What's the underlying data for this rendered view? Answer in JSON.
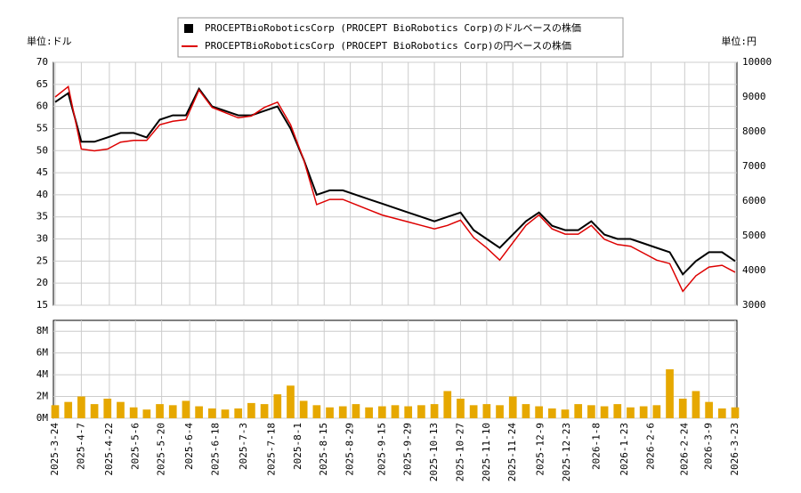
{
  "chart_data": [
    {
      "type": "line",
      "ylabel": "単位:ドル",
      "y2label": "単位:円",
      "legend": "upper center",
      "grid": true,
      "x": [
        "2025-3-24",
        "2025-3-31",
        "2025-4-7",
        "2025-4-14",
        "2025-4-21",
        "2025-4-28",
        "2025-5-5",
        "2025-5-12",
        "2025-5-19",
        "2025-5-26",
        "2025-6-2",
        "2025-6-9",
        "2025-6-16",
        "2025-6-23",
        "2025-6-30",
        "2025-7-7",
        "2025-7-14",
        "2025-7-21",
        "2025-7-28",
        "2025-8-4",
        "2025-8-11",
        "2025-8-18",
        "2025-8-25",
        "2025-9-1",
        "2025-9-8",
        "2025-9-15",
        "2025-9-22",
        "2025-9-29",
        "2025-10-6",
        "2025-10-13",
        "2025-10-20",
        "2025-10-27",
        "2025-11-3",
        "2025-11-10",
        "2025-11-17",
        "2025-11-24",
        "2025-12-1",
        "2025-12-8",
        "2025-12-15",
        "2025-12-22",
        "2025-12-29",
        "2026-1-5",
        "2026-1-12",
        "2026-1-19",
        "2026-1-26",
        "2026-2-2",
        "2026-2-9",
        "2026-2-16",
        "2026-2-23",
        "2026-3-2",
        "2026-3-9",
        "2026-3-16",
        "2026-3-23"
      ],
      "xlim": [
        "2025-3-24",
        "2026-3-23"
      ],
      "ylim": [
        15,
        70
      ],
      "yticks": [
        15,
        20,
        25,
        30,
        35,
        40,
        45,
        50,
        55,
        60,
        65,
        70
      ],
      "y2lim": [
        3000,
        10000
      ],
      "y2ticks": [
        3000,
        4000,
        5000,
        6000,
        7000,
        8000,
        9000,
        10000
      ],
      "series": [
        {
          "name": "PROCEPTBioRoboticsCorp (PROCEPT BioRobotics Corp)のドルベースの株価",
          "color": "#000000",
          "marker": "square",
          "axis": "y",
          "values": [
            61,
            63,
            52,
            52,
            53,
            54,
            54,
            53,
            57,
            58,
            58,
            64,
            60,
            59,
            58,
            58,
            59,
            60,
            55,
            48,
            40,
            41,
            41,
            40,
            39,
            38,
            37,
            36,
            35,
            34,
            35,
            36,
            32,
            30,
            28,
            31,
            34,
            36,
            33,
            32,
            32,
            34,
            31,
            30,
            30,
            29,
            28,
            27,
            22,
            25,
            27,
            27,
            25
          ]
        },
        {
          "name": "PROCEPTBioRoboticsCorp (PROCEPT BioRobotics Corp)の円ベースの株価",
          "color": "#dd0000",
          "marker": "line",
          "axis": "y2",
          "values": [
            9000,
            9300,
            7500,
            7450,
            7500,
            7700,
            7750,
            7750,
            8200,
            8300,
            8350,
            9200,
            8700,
            8550,
            8400,
            8450,
            8700,
            8850,
            8200,
            7200,
            5900,
            6050,
            6050,
            5900,
            5750,
            5600,
            5500,
            5400,
            5300,
            5200,
            5300,
            5450,
            4950,
            4650,
            4300,
            4800,
            5300,
            5600,
            5200,
            5050,
            5050,
            5300,
            4900,
            4750,
            4700,
            4500,
            4300,
            4200,
            3400,
            3850,
            4100,
            4150,
            3950
          ]
        }
      ]
    },
    {
      "type": "bar",
      "color": "#e6a800",
      "grid": true,
      "x": [
        "2025-3-24",
        "2025-3-31",
        "2025-4-7",
        "2025-4-14",
        "2025-4-21",
        "2025-4-28",
        "2025-5-5",
        "2025-5-12",
        "2025-5-19",
        "2025-5-26",
        "2025-6-2",
        "2025-6-9",
        "2025-6-16",
        "2025-6-23",
        "2025-6-30",
        "2025-7-7",
        "2025-7-14",
        "2025-7-21",
        "2025-7-28",
        "2025-8-4",
        "2025-8-11",
        "2025-8-18",
        "2025-8-25",
        "2025-9-1",
        "2025-9-8",
        "2025-9-15",
        "2025-9-22",
        "2025-9-29",
        "2025-10-6",
        "2025-10-13",
        "2025-10-20",
        "2025-10-27",
        "2025-11-3",
        "2025-11-10",
        "2025-11-17",
        "2025-11-24",
        "2025-12-1",
        "2025-12-8",
        "2025-12-15",
        "2025-12-22",
        "2025-12-29",
        "2026-1-5",
        "2026-1-12",
        "2026-1-19",
        "2026-1-26",
        "2026-2-2",
        "2026-2-9",
        "2026-2-16",
        "2026-2-23",
        "2026-3-2",
        "2026-3-9",
        "2026-3-16",
        "2026-3-23"
      ],
      "xlim": [
        "2025-3-24",
        "2026-3-23"
      ],
      "xticks": [
        "2025-3-24",
        "2025-4-7",
        "2025-4-22",
        "2025-5-6",
        "2025-5-20",
        "2025-6-4",
        "2025-6-18",
        "2025-7-3",
        "2025-7-18",
        "2025-8-1",
        "2025-8-15",
        "2025-8-29",
        "2025-9-15",
        "2025-9-29",
        "2025-10-13",
        "2025-10-27",
        "2025-11-10",
        "2025-11-24",
        "2025-12-9",
        "2025-12-23",
        "2026-1-8",
        "2026-1-23",
        "2026-2-6",
        "2026-2-24",
        "2026-3-9",
        "2026-3-23"
      ],
      "ylim": [
        0,
        9000000
      ],
      "yticks": [
        {
          "value": 0,
          "label": "0M"
        },
        {
          "value": 2000000,
          "label": "2M"
        },
        {
          "value": 4000000,
          "label": "4M"
        },
        {
          "value": 6000000,
          "label": "6M"
        },
        {
          "value": 8000000,
          "label": "8M"
        }
      ],
      "values": [
        1200000,
        1500000,
        2000000,
        1300000,
        1800000,
        1500000,
        1000000,
        800000,
        1300000,
        1200000,
        1600000,
        1100000,
        900000,
        800000,
        900000,
        1400000,
        1300000,
        2200000,
        3000000,
        1600000,
        1200000,
        1000000,
        1100000,
        1300000,
        1000000,
        1100000,
        1200000,
        1100000,
        1200000,
        1300000,
        2500000,
        1800000,
        1200000,
        1300000,
        1200000,
        2000000,
        1300000,
        1100000,
        900000,
        800000,
        1300000,
        1200000,
        1100000,
        1300000,
        1000000,
        1100000,
        1200000,
        4500000,
        1800000,
        2500000,
        1500000,
        900000,
        1000000
      ]
    }
  ]
}
